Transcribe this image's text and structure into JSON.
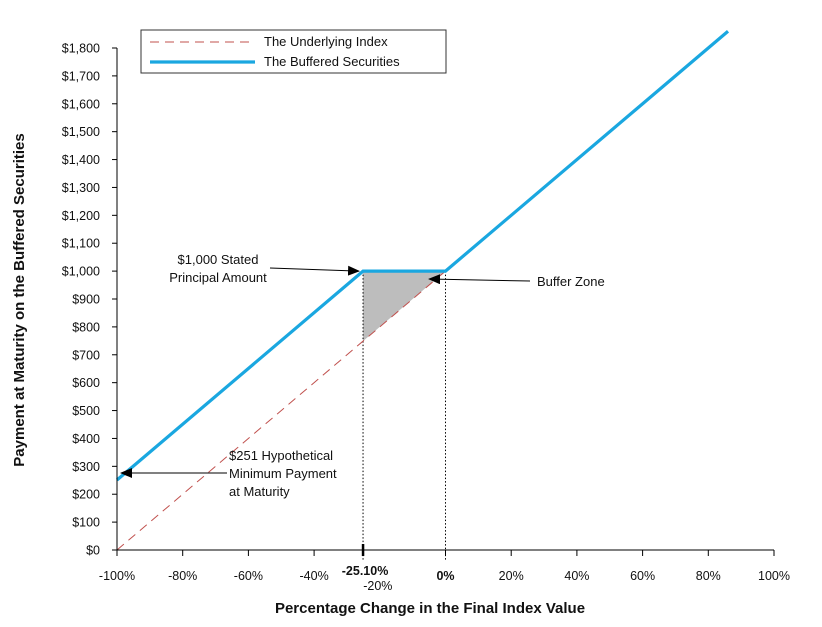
{
  "chart_data": {
    "type": "line",
    "xlabel": "Percentage Change in the Final Index Value",
    "ylabel": "Payment at Maturity on the Buffered Securities",
    "xlim": [
      -100,
      100
    ],
    "ylim": [
      0,
      1800
    ],
    "x_ticks": [
      {
        "value": -100,
        "label": "-100%"
      },
      {
        "value": -80,
        "label": "-80%"
      },
      {
        "value": -60,
        "label": "-60%"
      },
      {
        "value": -40,
        "label": "-40%"
      },
      {
        "value": 0,
        "label": "0%"
      },
      {
        "value": 20,
        "label": "20%"
      },
      {
        "value": 40,
        "label": "40%"
      },
      {
        "value": 60,
        "label": "60%"
      },
      {
        "value": 80,
        "label": "80%"
      },
      {
        "value": 100,
        "label": "100%"
      }
    ],
    "y_ticks": [
      {
        "value": 0,
        "label": "$0"
      },
      {
        "value": 100,
        "label": "$100"
      },
      {
        "value": 200,
        "label": "$200"
      },
      {
        "value": 300,
        "label": "$300"
      },
      {
        "value": 400,
        "label": "$400"
      },
      {
        "value": 500,
        "label": "$500"
      },
      {
        "value": 600,
        "label": "$600"
      },
      {
        "value": 700,
        "label": "$700"
      },
      {
        "value": 800,
        "label": "$800"
      },
      {
        "value": 900,
        "label": "$900"
      },
      {
        "value": 1000,
        "label": "$1,000"
      },
      {
        "value": 1100,
        "label": "$1,100"
      },
      {
        "value": 1200,
        "label": "$1,200"
      },
      {
        "value": 1300,
        "label": "$1,300"
      },
      {
        "value": 1400,
        "label": "$1,400"
      },
      {
        "value": 1500,
        "label": "$1,500"
      },
      {
        "value": 1600,
        "label": "$1,600"
      },
      {
        "value": 1700,
        "label": "$1,700"
      },
      {
        "value": 1800,
        "label": "$1,800"
      }
    ],
    "special_ticks": [
      {
        "value": -25.1,
        "label": "-25.10%"
      },
      {
        "value": -20,
        "label": "-20%"
      }
    ],
    "series": [
      {
        "name": "The Underlying Index",
        "style": "dashed",
        "color": "#c0504d",
        "x": [
          -100,
          0
        ],
        "y": [
          0,
          1000
        ]
      },
      {
        "name": "The Buffered Securities",
        "style": "solid",
        "color": "#1aa7e0",
        "x": [
          -100,
          -25.1,
          0,
          86
        ],
        "y": [
          251,
          1000,
          1000,
          1860
        ]
      }
    ],
    "buffer_zone": {
      "x": [
        -25.1,
        0
      ],
      "fill": "#bdbdbd"
    },
    "annotations": [
      {
        "lines": [
          "$1,000 Stated",
          "Principal Amount"
        ],
        "target_x": -25.1,
        "target_y": 1000
      },
      {
        "lines": [
          "Buffer  Zone"
        ],
        "target_x": -5,
        "target_y": 980
      },
      {
        "lines": [
          "$251 Hypothetical",
          "Minimum Payment",
          "at Maturity"
        ],
        "target_x": -100,
        "target_y": 251
      }
    ],
    "legend": {
      "position": "top-left"
    },
    "grid": false
  }
}
